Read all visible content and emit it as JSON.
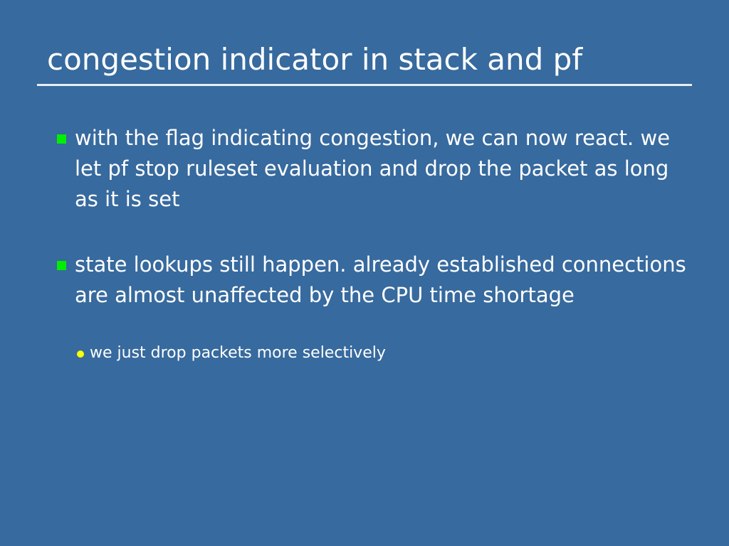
{
  "slide": {
    "title": "congestion indicator in stack and pf",
    "bullets": [
      {
        "text": "with the flag indicating congestion, we can now react. we let pf stop ruleset evaluation and drop the packet as long as it is set"
      },
      {
        "text": "state lookups still happen. already established connections are almost unaffected by the CPU time shortage",
        "sub": [
          "we just drop packets more selectively"
        ]
      }
    ],
    "colors": {
      "background": "#376a9e",
      "bullet": "#00ee00",
      "sub_bullet": "#ffff00"
    }
  }
}
